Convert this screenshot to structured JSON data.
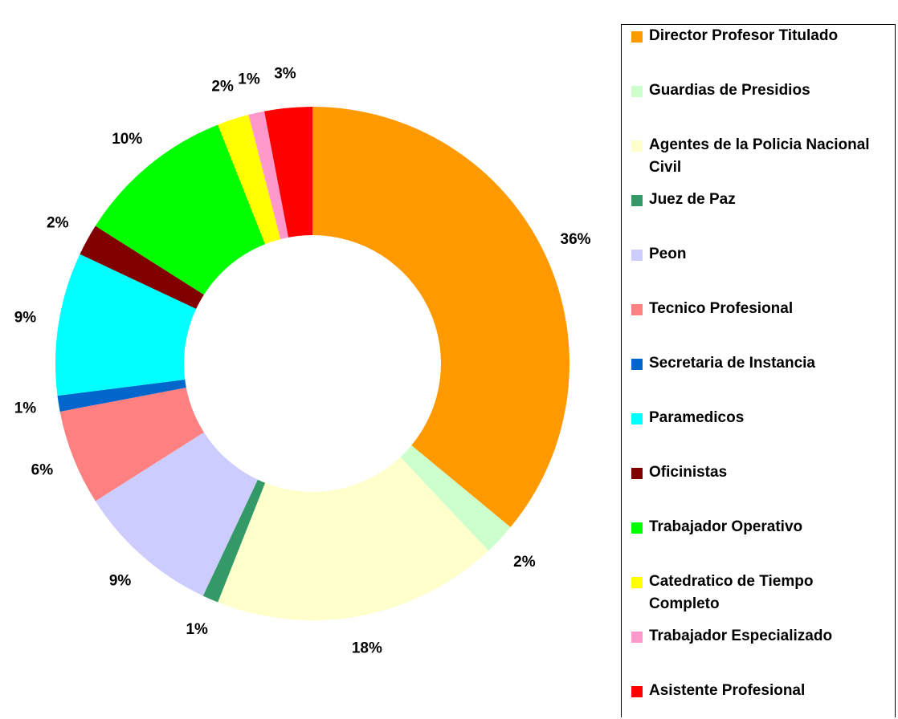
{
  "chart_data": {
    "type": "pie",
    "donut": true,
    "categories": [
      "Director Profesor Titulado",
      "Guardias de Presidios",
      "Agentes de la Policia Nacional Civil",
      "Juez de Paz",
      "Peon",
      "Tecnico Profesional",
      "Secretaria de Instancia",
      "Paramedicos",
      "Oficinistas",
      "Trabajador Operativo",
      "Catedratico de Tiempo Completo",
      "Trabajador Especializado",
      "Asistente Profesional"
    ],
    "values": [
      36,
      2,
      18,
      1,
      9,
      6,
      1,
      9,
      2,
      10,
      2,
      1,
      3
    ],
    "value_labels": [
      "36%",
      "2%",
      "18%",
      "1%",
      "9%",
      "6%",
      "1%",
      "9%",
      "2%",
      "10%",
      "2%",
      "1%",
      "3%"
    ],
    "colors": [
      "#FF9900",
      "#CCFFCC",
      "#FFFFCC",
      "#339966",
      "#CCCCFF",
      "#FF8080",
      "#0066CC",
      "#00FFFF",
      "#800000",
      "#00FF00",
      "#FFFF00",
      "#FF99CC",
      "#FF0000"
    ],
    "legend": "right"
  }
}
